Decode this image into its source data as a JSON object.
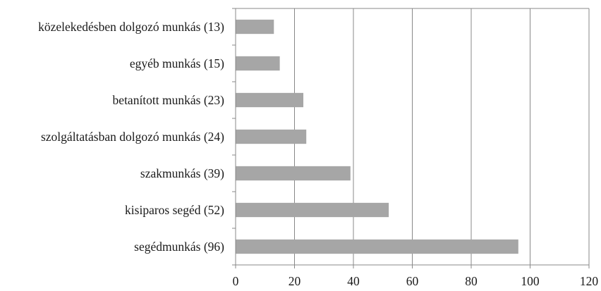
{
  "chart_data": {
    "type": "bar",
    "orientation": "horizontal",
    "title": "",
    "xlabel": "",
    "ylabel": "",
    "categories": [
      "közelekedésben dolgozó munkás (13)",
      "egyéb munkás (15)",
      "betanított munkás (23)",
      "szolgáltatásban dolgozó munkás (24)",
      "szakmunkás (39)",
      "kisiparos segéd (52)",
      "segédmunkás (96)"
    ],
    "values": [
      13,
      15,
      23,
      24,
      39,
      52,
      96
    ],
    "xlim": [
      0,
      120
    ],
    "xticks": [
      0,
      20,
      40,
      60,
      80,
      100,
      120
    ],
    "grid": true,
    "legend": "none",
    "bar_color": "#a6a6a6",
    "grid_color": "#888888"
  }
}
